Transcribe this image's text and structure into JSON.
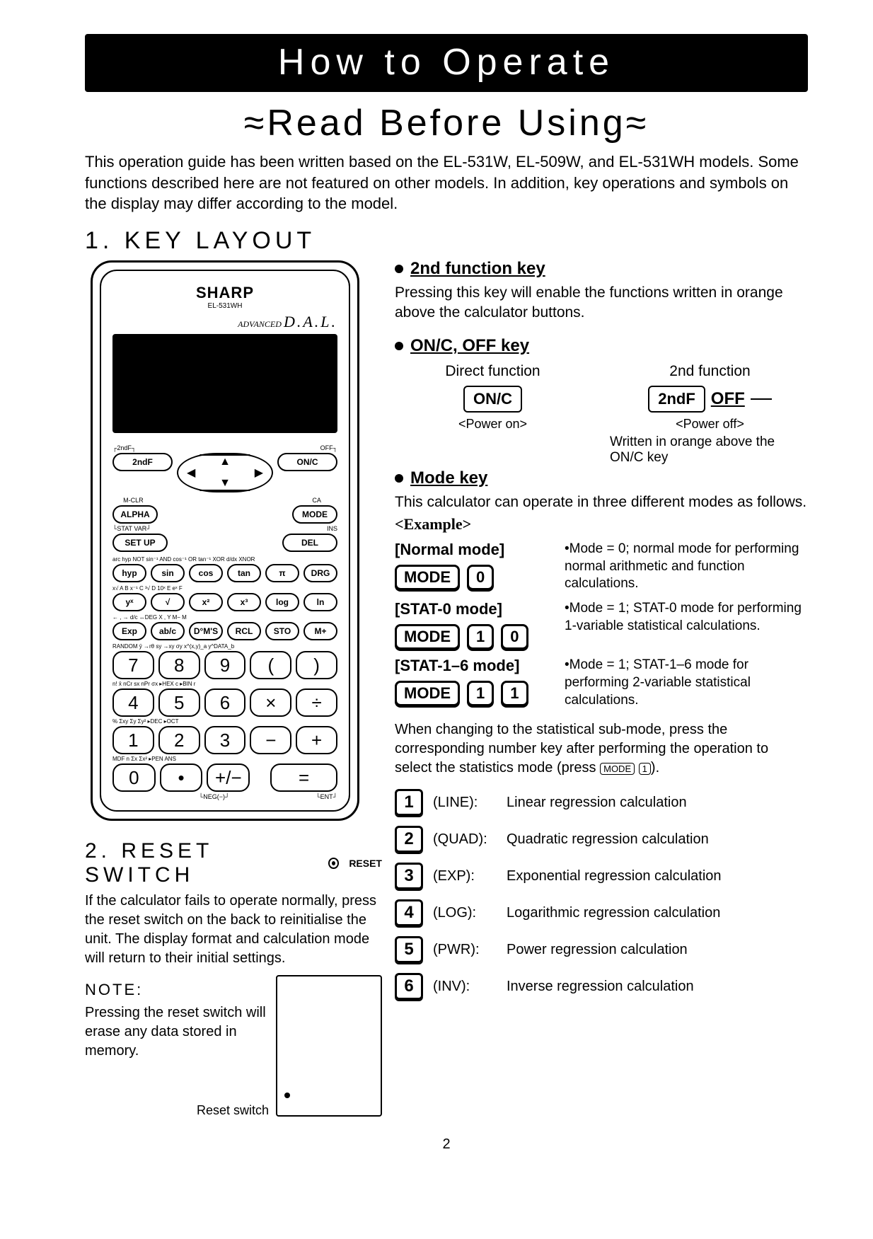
{
  "title": "How to Operate",
  "subtitle": "≈Read Before Using≈",
  "intro": "This operation guide has been written based on the EL-531W, EL-509W, and EL-531WH models. Some functions described here are not featured on other models. In addition, key operations and symbols on the display may differ according to the model.",
  "section1_heading": "1. KEY LAYOUT",
  "page_number": "2",
  "calculator": {
    "brand": "SHARP",
    "model": "EL-531WH",
    "dal_prefix": "ADVANCED",
    "dal": "D.A.L.",
    "top_labels_left": "2ndF",
    "top_labels_right_off": "OFF",
    "keys_row1": [
      "2ndF",
      "",
      "",
      "",
      "ON/C"
    ],
    "row2_labels": [
      "M-CLR",
      "",
      "",
      "",
      "CA"
    ],
    "keys_row2_right": "MODE",
    "row3_labels_left": "ALPHA",
    "row3_stat": "STAT VAR",
    "row3_ins": "INS",
    "row3_setup": "SET UP",
    "row3_del": "DEL",
    "fnlabels1": "arc hyp NOT  sin⁻¹ AND  cos⁻¹ OR  tan⁻¹ XOR  d/dx XNOR",
    "keys_fn1": [
      "hyp",
      "sin",
      "cos",
      "tan",
      "π",
      "DRG"
    ],
    "fnlabels2": "x√   A    B   x⁻¹  C   ³√   D   10ˣ  E   eˣ   F",
    "keys_fn2": [
      "yˣ",
      "√",
      "x²",
      "x³",
      "log",
      "ln"
    ],
    "fnlabels3": "← , →    d/c   ↔DEG    X    ,    Y   M−   M",
    "keys_fn3": [
      "Exp",
      "ab/c",
      "D°M'S",
      "RCL",
      "STO",
      "M+"
    ],
    "fnlabels4": "RANDOM  ȳ   →rθ  sy   →xy  σy    x^(x,y)_a  y^DATA_b",
    "keys_num1": [
      "7",
      "8",
      "9",
      "(",
      ")"
    ],
    "numlabels2": "n!   x̄   nCr  sx   nPr  σx   ▸HEX c ▸BIN r",
    "keys_num2": [
      "4",
      "5",
      "6",
      "×",
      "÷"
    ],
    "numlabels3": "%  Σxy   Σy    Σy²   ▸DEC  ▸OCT",
    "keys_num3": [
      "1",
      "2",
      "3",
      "−",
      "+"
    ],
    "numlabels4": "MDF   n   Σx    Σx²   ▸PEN   ANS",
    "keys_num4": [
      "0",
      "•",
      "+/−",
      "",
      "="
    ],
    "bottom_left": "└NEG(−)┘",
    "bottom_right": "└ENT┘"
  },
  "key_descriptions": {
    "second_fn": {
      "heading": "2nd function key",
      "text": "Pressing this key will enable the functions written in orange above the calculator buttons."
    },
    "onc": {
      "heading": "ON/C, OFF key",
      "direct_label": "Direct function",
      "second_label": "2nd function",
      "onc_key": "ON/C",
      "secondf_key": "2ndF",
      "off_label": "OFF",
      "power_on": "<Power on>",
      "power_off": "<Power off>",
      "written_note": "Written in orange above the ON/C key"
    },
    "mode": {
      "heading": "Mode key",
      "text": "This calculator can operate in three different modes as follows.",
      "example_label": "<Example>",
      "modes": [
        {
          "title": "[Normal mode]",
          "keys": [
            "MODE",
            "0"
          ],
          "desc": "•Mode = 0; normal mode for performing normal arithmetic and function calculations."
        },
        {
          "title": "[STAT-0 mode]",
          "keys": [
            "MODE",
            "1",
            "0"
          ],
          "desc": "•Mode = 1; STAT-0 mode for performing 1-variable statistical calculations."
        },
        {
          "title": "[STAT-1–6 mode]",
          "keys": [
            "MODE",
            "1",
            "1"
          ],
          "desc": "•Mode = 1; STAT-1–6 mode for performing 2-variable statistical calculations."
        }
      ],
      "stat_note_pre": "When changing to the statistical sub-mode, press the corresponding number key after performing the operation to select the statistics mode (press ",
      "stat_note_key1": "MODE",
      "stat_note_key2": "1",
      "stat_note_post": ")."
    }
  },
  "section2": {
    "heading": "2. RESET SWITCH",
    "reset_label": "RESET",
    "body": "If the calculator fails to operate normally, press the reset switch on the back to reinitialise the unit. The display format and calculation mode will return to their initial settings.",
    "note_heading": "NOTE:",
    "note_body": "Pressing the reset switch will erase any data stored in memory.",
    "reset_switch_label": "Reset switch"
  },
  "regressions": [
    {
      "k": "1",
      "code": "(LINE):",
      "desc": "Linear regression calculation"
    },
    {
      "k": "2",
      "code": "(QUAD):",
      "desc": "Quadratic regression calculation"
    },
    {
      "k": "3",
      "code": "(EXP):",
      "desc": "Exponential regression calculation"
    },
    {
      "k": "4",
      "code": "(LOG):",
      "desc": "Logarithmic regression calculation"
    },
    {
      "k": "5",
      "code": "(PWR):",
      "desc": "Power regression calculation"
    },
    {
      "k": "6",
      "code": "(INV):",
      "desc": "Inverse regression calculation"
    }
  ]
}
